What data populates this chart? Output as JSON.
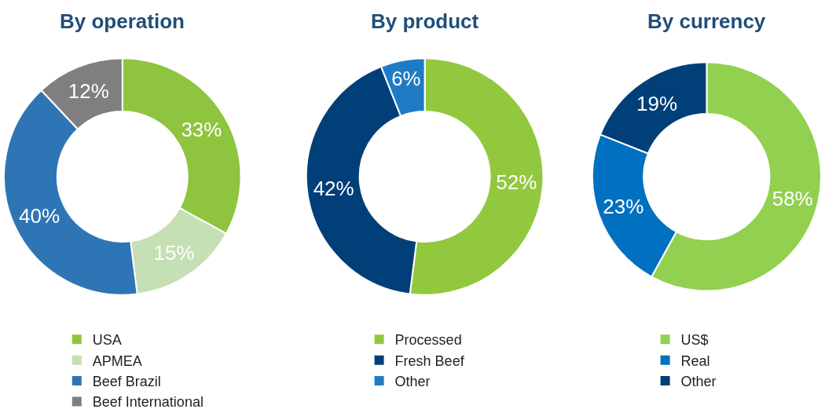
{
  "chart_data": [
    {
      "type": "donut",
      "title": "By operation",
      "categories": [
        "USA",
        "APMEA",
        "Beef Brazil",
        "Beef International"
      ],
      "values": [
        33,
        15,
        40,
        12
      ],
      "colors": [
        "#8fc43f",
        "#c5e0b4",
        "#2e75b6",
        "#7f7f7f"
      ],
      "value_labels": [
        "33%",
        "15%",
        "40%",
        "12%"
      ],
      "legend": "bottom"
    },
    {
      "type": "donut",
      "title": "By product",
      "categories": [
        "Processed",
        "Fresh Beef",
        "Other"
      ],
      "values": [
        52,
        42,
        6
      ],
      "colors": [
        "#92c83e",
        "#003f78",
        "#1f7bc4"
      ],
      "value_labels": [
        "52%",
        "42%",
        "6%"
      ],
      "legend": "bottom"
    },
    {
      "type": "donut",
      "title": "By currency",
      "categories": [
        "US$",
        "Real",
        "Other"
      ],
      "values": [
        58,
        23,
        19
      ],
      "colors": [
        "#92d050",
        "#0070c0",
        "#003f78"
      ],
      "value_labels": [
        "58%",
        "23%",
        "19%"
      ],
      "legend": "bottom"
    }
  ]
}
